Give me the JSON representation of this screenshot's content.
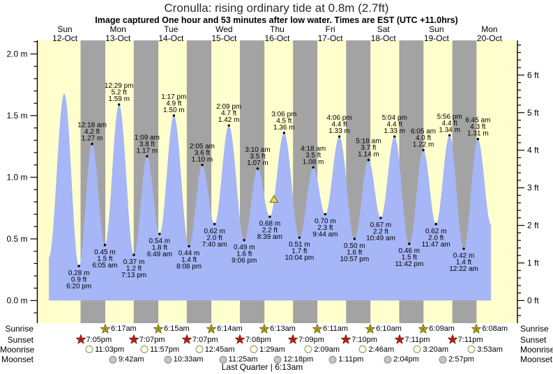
{
  "title": "Cronulla: rising  ordinary tide at 0.8m (2.7ft)",
  "subtitle": "Image captured One hour and 53 minutes after low water. Times are EST (UTC +11.0hrs)",
  "colors": {
    "day_band": "#ffffce",
    "night_band": "#a3a3a3",
    "water_fill": "#a6b6f7",
    "day_label": "#ff3b2e",
    "axis": "#000000",
    "sunrise_star_fill": "#bfae25",
    "sunrise_star_stroke": "#6b6200",
    "sunset_star_fill": "#d32b1e",
    "sunset_star_stroke": "#741109",
    "moonrise_circle_fill": "#ffffdd",
    "moonrise_circle_stroke": "#8a8a8a",
    "moonset_circle_fill": "#c6c6b6",
    "moonset_circle_stroke": "#8a8a8a",
    "marker_fill": "#e8de4e",
    "marker_stroke": "#6b6200"
  },
  "chart_data": {
    "type": "area",
    "title": "Cronulla: rising  ordinary tide at 0.8m (2.7ft)",
    "ylabel_left_unit": "m",
    "ylabel_right_unit": "ft",
    "ylim_m": [
      0.0,
      2.11
    ],
    "grid": false,
    "y_axis_left_ticks": [
      "0.0 m",
      "0.5 m",
      "1.0 m",
      "1.5 m",
      "2.0 m"
    ],
    "y_axis_right_ticks": [
      "0 ft",
      "1 ft",
      "2 ft",
      "3 ft",
      "4 ft",
      "5 ft",
      "6 ft"
    ],
    "days": [
      {
        "day": "Sun",
        "date": "12-Oct"
      },
      {
        "day": "Mon",
        "date": "13-Oct"
      },
      {
        "day": "Tue",
        "date": "14-Oct"
      },
      {
        "day": "Wed",
        "date": "15-Oct"
      },
      {
        "day": "Thu",
        "date": "16-Oct"
      },
      {
        "day": "Fri",
        "date": "17-Oct"
      },
      {
        "day": "Sat",
        "date": "18-Oct"
      },
      {
        "day": "Sun",
        "date": "19-Oct"
      },
      {
        "day": "Mon",
        "date": "20-Oct"
      }
    ],
    "tide_events": [
      {
        "d": 0,
        "time": "11:43 am",
        "height_m": "1.68",
        "height_ft": "5.5",
        "type": "high",
        "labeled": false
      },
      {
        "d": 0,
        "time": "6:20 pm",
        "height_m": "0.28",
        "height_ft": "0.9",
        "type": "low",
        "labeled": true
      },
      {
        "d": 1,
        "time": "12:18 am",
        "height_m": "1.27",
        "height_ft": "4.2",
        "type": "high",
        "labeled": true
      },
      {
        "d": 1,
        "time": "6:05 am",
        "height_m": "0.45",
        "height_ft": "1.5",
        "type": "low",
        "labeled": true
      },
      {
        "d": 1,
        "time": "12:29 pm",
        "height_m": "1.59",
        "height_ft": "5.2",
        "type": "high",
        "labeled": true
      },
      {
        "d": 1,
        "time": "7:13 pm",
        "height_m": "0.37",
        "height_ft": "1.2",
        "type": "low",
        "labeled": true
      },
      {
        "d": 2,
        "time": "1:09 am",
        "height_m": "1.17",
        "height_ft": "3.8",
        "type": "high",
        "labeled": true
      },
      {
        "d": 2,
        "time": "6:49 am",
        "height_m": "0.54",
        "height_ft": "1.8",
        "type": "low",
        "labeled": true
      },
      {
        "d": 2,
        "time": "1:17 pm",
        "height_m": "1.50",
        "height_ft": "4.9",
        "type": "high",
        "labeled": true
      },
      {
        "d": 2,
        "time": "8:08 pm",
        "height_m": "0.44",
        "height_ft": "1.4",
        "type": "low",
        "labeled": true
      },
      {
        "d": 3,
        "time": "2:05 am",
        "height_m": "1.10",
        "height_ft": "3.6",
        "type": "high",
        "labeled": true
      },
      {
        "d": 3,
        "time": "7:40 am",
        "height_m": "0.62",
        "height_ft": "2.0",
        "type": "low",
        "labeled": true
      },
      {
        "d": 3,
        "time": "2:09 pm",
        "height_m": "1.42",
        "height_ft": "4.7",
        "type": "high",
        "labeled": true
      },
      {
        "d": 3,
        "time": "9:06 pm",
        "height_m": "0.49",
        "height_ft": "1.6",
        "type": "low",
        "labeled": true
      },
      {
        "d": 4,
        "time": "3:10 am",
        "height_m": "1.07",
        "height_ft": "3.5",
        "type": "high",
        "labeled": true
      },
      {
        "d": 4,
        "time": "8:39 am",
        "height_m": "0.68",
        "height_ft": "2.2",
        "type": "low",
        "labeled": true
      },
      {
        "d": 4,
        "time": "3:06 pm",
        "height_m": "1.36",
        "height_ft": "4.5",
        "type": "high",
        "labeled": true
      },
      {
        "d": 4,
        "time": "10:04 pm",
        "height_m": "0.51",
        "height_ft": "1.7",
        "type": "low",
        "labeled": true
      },
      {
        "d": 5,
        "time": "4:18 am",
        "height_m": "1.08",
        "height_ft": "3.5",
        "type": "high",
        "labeled": true
      },
      {
        "d": 5,
        "time": "9:44 am",
        "height_m": "0.70",
        "height_ft": "2.3",
        "type": "low",
        "labeled": true
      },
      {
        "d": 5,
        "time": "4:06 pm",
        "height_m": "1.33",
        "height_ft": "4.4",
        "type": "high",
        "labeled": true
      },
      {
        "d": 5,
        "time": "10:57 pm",
        "height_m": "0.50",
        "height_ft": "1.6",
        "type": "low",
        "labeled": true
      },
      {
        "d": 6,
        "time": "5:18 am",
        "height_m": "1.14",
        "height_ft": "3.7",
        "type": "high",
        "labeled": true
      },
      {
        "d": 6,
        "time": "10:49 am",
        "height_m": "0.67",
        "height_ft": "2.2",
        "type": "low",
        "labeled": true
      },
      {
        "d": 6,
        "time": "5:04 pm",
        "height_m": "1.33",
        "height_ft": "4.4",
        "type": "high",
        "labeled": true
      },
      {
        "d": 6,
        "time": "11:42 pm",
        "height_m": "0.46",
        "height_ft": "1.5",
        "type": "low",
        "labeled": true
      },
      {
        "d": 7,
        "time": "6:05 am",
        "height_m": "1.22",
        "height_ft": "4.0",
        "type": "high",
        "labeled": true
      },
      {
        "d": 7,
        "time": "11:47 am",
        "height_m": "0.62",
        "height_ft": "2.0",
        "type": "low",
        "labeled": true
      },
      {
        "d": 7,
        "time": "5:56 pm",
        "height_m": "1.34",
        "height_ft": "4.4",
        "type": "high",
        "labeled": true
      },
      {
        "d": 8,
        "time": "12:22 am",
        "height_m": "0.42",
        "height_ft": "1.4",
        "type": "low",
        "labeled": true
      },
      {
        "d": 8,
        "time": "6:45 am",
        "height_m": "1.31",
        "height_ft": "4.3",
        "type": "high",
        "labeled": true
      }
    ],
    "curve_start": {
      "d": 0,
      "time": "4:45 am",
      "height_m": "0.35"
    },
    "curve_end": {
      "d": 8,
      "time": "12:40 pm",
      "height_m": "0.62"
    },
    "current_marker": {
      "d": 4,
      "time": "10:32 am",
      "height_m": "0.82"
    }
  },
  "almanac": {
    "rows": [
      {
        "id": "sunrise",
        "label": "Sunrise",
        "icon": "sunrise-star",
        "events": [
          {
            "d": 1,
            "time": "6:17am"
          },
          {
            "d": 2,
            "time": "6:15am"
          },
          {
            "d": 3,
            "time": "6:14am"
          },
          {
            "d": 4,
            "time": "6:13am"
          },
          {
            "d": 5,
            "time": "6:11am"
          },
          {
            "d": 6,
            "time": "6:10am"
          },
          {
            "d": 7,
            "time": "6:09am"
          },
          {
            "d": 8,
            "time": "6:08am"
          }
        ]
      },
      {
        "id": "sunset",
        "label": "Sunset",
        "icon": "sunset-star",
        "events": [
          {
            "d": 0,
            "time": "7:05pm"
          },
          {
            "d": 1,
            "time": "7:07pm"
          },
          {
            "d": 2,
            "time": "7:07pm"
          },
          {
            "d": 3,
            "time": "7:08pm"
          },
          {
            "d": 4,
            "time": "7:09pm"
          },
          {
            "d": 5,
            "time": "7:10pm"
          },
          {
            "d": 6,
            "time": "7:11pm"
          },
          {
            "d": 7,
            "time": "7:11pm"
          }
        ]
      },
      {
        "id": "moonrise",
        "label": "Moonrise",
        "icon": "moonrise-circle",
        "events": [
          {
            "d": 0,
            "time": "11:03pm"
          },
          {
            "d": 1,
            "time": "11:57pm"
          },
          {
            "d": 3,
            "time": "12:45am"
          },
          {
            "d": 4,
            "time": "1:29am"
          },
          {
            "d": 5,
            "time": "2:09am"
          },
          {
            "d": 6,
            "time": "2:46am"
          },
          {
            "d": 7,
            "time": "3:20am"
          },
          {
            "d": 8,
            "time": "3:53am"
          }
        ]
      },
      {
        "id": "moonset",
        "label": "Moonset",
        "icon": "moonset-circle",
        "events": [
          {
            "d": 1,
            "time": "9:42am"
          },
          {
            "d": 2,
            "time": "10:33am"
          },
          {
            "d": 3,
            "time": "11:25am"
          },
          {
            "d": 4,
            "time": "12:18pm"
          },
          {
            "d": 5,
            "time": "1:11pm"
          },
          {
            "d": 6,
            "time": "2:04pm"
          },
          {
            "d": 7,
            "time": "2:57pm"
          }
        ]
      }
    ],
    "footer": "Last Quarter | 6:13am"
  }
}
